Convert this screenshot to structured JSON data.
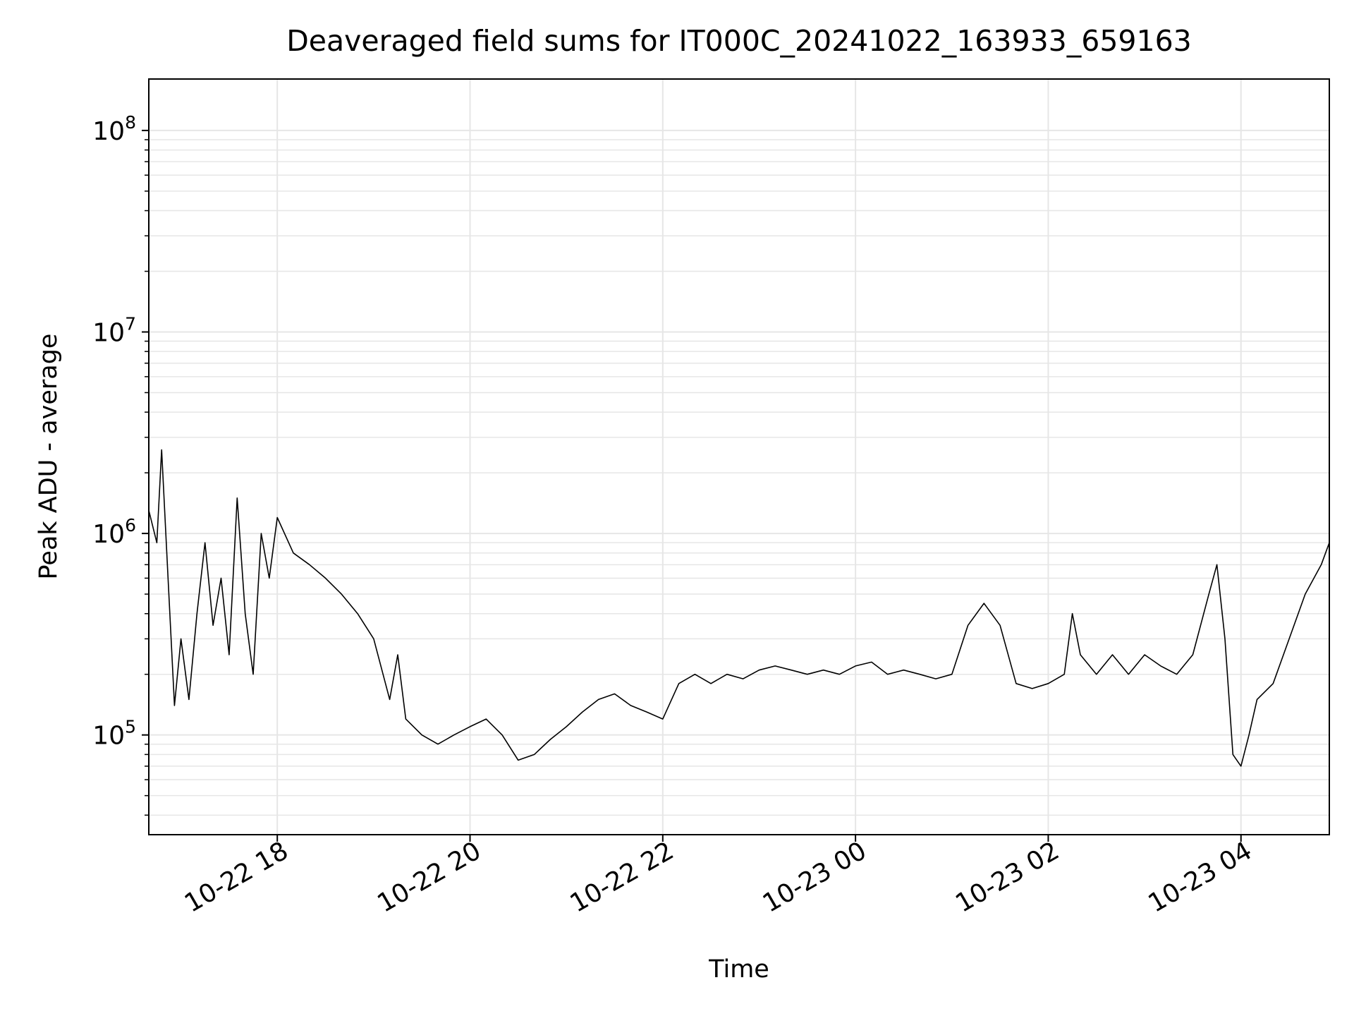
{
  "chart_data": {
    "type": "line",
    "title": "Deaveraged field sums for IT000C_20241022_163933_659163",
    "xlabel": "Time",
    "ylabel": "Peak ADU - average",
    "yscale": "log",
    "ylim": [
      32000,
      180000000
    ],
    "xlim": [
      "2024-10-22 16:40",
      "2024-10-23 04:55"
    ],
    "grid": true,
    "line_color": "#000000",
    "grid_color": "#e6e6e6",
    "x_ticks": [
      {
        "t": "2024-10-22 18:00",
        "label": "10-22 18"
      },
      {
        "t": "2024-10-22 20:00",
        "label": "10-22 20"
      },
      {
        "t": "2024-10-22 22:00",
        "label": "10-22 22"
      },
      {
        "t": "2024-10-23 00:00",
        "label": "10-23 00"
      },
      {
        "t": "2024-10-23 02:00",
        "label": "10-23 02"
      },
      {
        "t": "2024-10-23 04:00",
        "label": "10-23 04"
      }
    ],
    "y_ticks": [
      {
        "value": 100000,
        "base": "10",
        "exp": "5"
      },
      {
        "value": 1000000,
        "base": "10",
        "exp": "6"
      },
      {
        "value": 10000000,
        "base": "10",
        "exp": "7"
      },
      {
        "value": 100000000,
        "base": "10",
        "exp": "8"
      }
    ],
    "series": [
      {
        "points": [
          [
            "2024-10-22 16:40",
            1300000
          ],
          [
            "2024-10-22 16:45",
            900000
          ],
          [
            "2024-10-22 16:48",
            2600000
          ],
          [
            "2024-10-22 16:52",
            600000
          ],
          [
            "2024-10-22 16:56",
            140000
          ],
          [
            "2024-10-22 17:00",
            300000
          ],
          [
            "2024-10-22 17:05",
            150000
          ],
          [
            "2024-10-22 17:10",
            400000
          ],
          [
            "2024-10-22 17:15",
            900000
          ],
          [
            "2024-10-22 17:20",
            350000
          ],
          [
            "2024-10-22 17:25",
            600000
          ],
          [
            "2024-10-22 17:30",
            250000
          ],
          [
            "2024-10-22 17:35",
            1500000
          ],
          [
            "2024-10-22 17:40",
            400000
          ],
          [
            "2024-10-22 17:45",
            200000
          ],
          [
            "2024-10-22 17:50",
            1000000
          ],
          [
            "2024-10-22 17:55",
            600000
          ],
          [
            "2024-10-22 18:00",
            1200000
          ],
          [
            "2024-10-22 18:10",
            800000
          ],
          [
            "2024-10-22 18:20",
            700000
          ],
          [
            "2024-10-22 18:30",
            600000
          ],
          [
            "2024-10-22 18:40",
            500000
          ],
          [
            "2024-10-22 18:50",
            400000
          ],
          [
            "2024-10-22 19:00",
            300000
          ],
          [
            "2024-10-22 19:10",
            150000
          ],
          [
            "2024-10-22 19:15",
            250000
          ],
          [
            "2024-10-22 19:20",
            120000
          ],
          [
            "2024-10-22 19:30",
            100000
          ],
          [
            "2024-10-22 19:40",
            90000
          ],
          [
            "2024-10-22 19:50",
            100000
          ],
          [
            "2024-10-22 20:00",
            110000
          ],
          [
            "2024-10-22 20:10",
            120000
          ],
          [
            "2024-10-22 20:20",
            100000
          ],
          [
            "2024-10-22 20:30",
            75000
          ],
          [
            "2024-10-22 20:40",
            80000
          ],
          [
            "2024-10-22 20:50",
            95000
          ],
          [
            "2024-10-22 21:00",
            110000
          ],
          [
            "2024-10-22 21:10",
            130000
          ],
          [
            "2024-10-22 21:20",
            150000
          ],
          [
            "2024-10-22 21:30",
            160000
          ],
          [
            "2024-10-22 21:40",
            140000
          ],
          [
            "2024-10-22 21:50",
            130000
          ],
          [
            "2024-10-22 22:00",
            120000
          ],
          [
            "2024-10-22 22:10",
            180000
          ],
          [
            "2024-10-22 22:20",
            200000
          ],
          [
            "2024-10-22 22:30",
            180000
          ],
          [
            "2024-10-22 22:40",
            200000
          ],
          [
            "2024-10-22 22:50",
            190000
          ],
          [
            "2024-10-22 23:00",
            210000
          ],
          [
            "2024-10-22 23:10",
            220000
          ],
          [
            "2024-10-22 23:20",
            210000
          ],
          [
            "2024-10-22 23:30",
            200000
          ],
          [
            "2024-10-22 23:40",
            210000
          ],
          [
            "2024-10-22 23:50",
            200000
          ],
          [
            "2024-10-23 00:00",
            220000
          ],
          [
            "2024-10-23 00:10",
            230000
          ],
          [
            "2024-10-23 00:20",
            200000
          ],
          [
            "2024-10-23 00:30",
            210000
          ],
          [
            "2024-10-23 00:40",
            200000
          ],
          [
            "2024-10-23 00:50",
            190000
          ],
          [
            "2024-10-23 01:00",
            200000
          ],
          [
            "2024-10-23 01:10",
            350000
          ],
          [
            "2024-10-23 01:20",
            450000
          ],
          [
            "2024-10-23 01:30",
            350000
          ],
          [
            "2024-10-23 01:40",
            180000
          ],
          [
            "2024-10-23 01:50",
            170000
          ],
          [
            "2024-10-23 02:00",
            180000
          ],
          [
            "2024-10-23 02:10",
            200000
          ],
          [
            "2024-10-23 02:15",
            400000
          ],
          [
            "2024-10-23 02:20",
            250000
          ],
          [
            "2024-10-23 02:30",
            200000
          ],
          [
            "2024-10-23 02:40",
            250000
          ],
          [
            "2024-10-23 02:50",
            200000
          ],
          [
            "2024-10-23 03:00",
            250000
          ],
          [
            "2024-10-23 03:10",
            220000
          ],
          [
            "2024-10-23 03:20",
            200000
          ],
          [
            "2024-10-23 03:30",
            250000
          ],
          [
            "2024-10-23 03:40",
            500000
          ],
          [
            "2024-10-23 03:45",
            700000
          ],
          [
            "2024-10-23 03:50",
            300000
          ],
          [
            "2024-10-23 03:55",
            80000
          ],
          [
            "2024-10-23 04:00",
            70000
          ],
          [
            "2024-10-23 04:05",
            100000
          ],
          [
            "2024-10-23 04:10",
            150000
          ],
          [
            "2024-10-23 04:20",
            180000
          ],
          [
            "2024-10-23 04:30",
            300000
          ],
          [
            "2024-10-23 04:40",
            500000
          ],
          [
            "2024-10-23 04:50",
            700000
          ],
          [
            "2024-10-23 04:55",
            900000
          ]
        ]
      }
    ]
  }
}
